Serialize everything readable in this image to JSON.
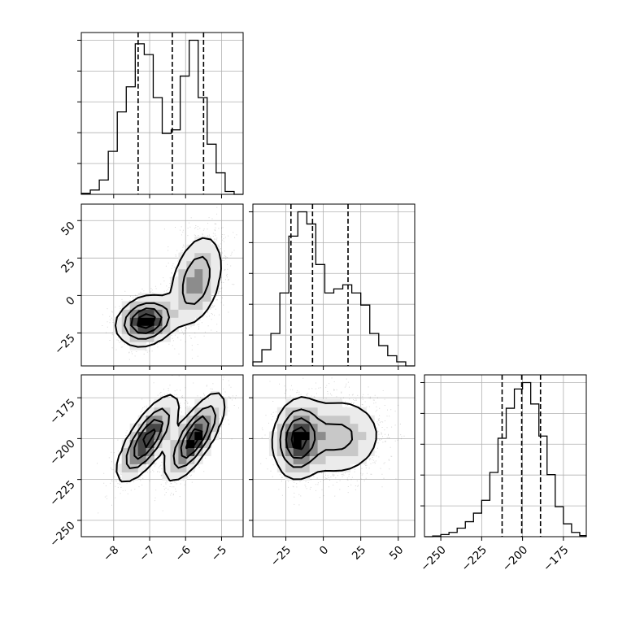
{
  "chart_data": {
    "type": "corner",
    "grid": true,
    "parameters": [
      {
        "ticks": [
          -8,
          -7,
          -6,
          -5
        ],
        "tick_labels": [
          "−8",
          "−7",
          "−6",
          "−5"
        ],
        "range": [
          -8.9,
          -4.4
        ]
      },
      {
        "ticks": [
          -25,
          0,
          25,
          50
        ],
        "tick_labels": [
          "−25",
          "0",
          "25",
          "50"
        ],
        "range": [
          -47,
          61
        ]
      },
      {
        "ticks": [
          -250,
          -225,
          -200,
          -175
        ],
        "tick_labels": [
          "−250",
          "−225",
          "−200",
          "−175"
        ],
        "range": [
          -260,
          -161
        ]
      }
    ],
    "histograms": [
      {
        "parameter": 0,
        "bin_edges": [
          -8.9,
          -8.65,
          -8.4,
          -8.15,
          -7.9,
          -7.65,
          -7.4,
          -7.15,
          -6.9,
          -6.65,
          -6.4,
          -6.15,
          -5.9,
          -5.65,
          -5.4,
          -5.15,
          -4.9,
          -4.65,
          -4.4
        ],
        "counts": [
          0.3,
          1.2,
          4,
          12,
          23,
          30,
          42,
          39,
          27,
          17,
          18,
          33,
          43,
          27,
          14,
          6,
          0.8,
          0
        ],
        "quantile_lines": [
          -7.32,
          -6.37,
          -5.5
        ]
      },
      {
        "parameter": 1,
        "bin_edges": [
          -47,
          -41,
          -35,
          -29,
          -23,
          -17,
          -11,
          -5,
          1,
          7,
          13,
          19,
          25,
          31,
          37,
          43,
          49,
          55,
          61
        ],
        "counts": [
          1,
          4,
          8,
          18,
          32,
          38,
          35,
          25,
          18,
          19,
          20,
          18,
          15,
          8,
          5,
          2.5,
          1,
          0
        ],
        "quantile_lines": [
          -21.6,
          -7.2,
          16.5
        ]
      },
      {
        "parameter": 2,
        "bin_edges": [
          -260,
          -255,
          -250,
          -245,
          -240,
          -235,
          -230,
          -225,
          -220,
          -215,
          -210,
          -205,
          -200,
          -195,
          -190,
          -185,
          -180,
          -175,
          -170,
          -165,
          -161
        ],
        "counts": [
          0,
          0.3,
          1,
          2,
          4,
          7,
          11,
          17,
          30,
          46,
          60,
          69,
          72,
          62,
          47,
          29,
          14,
          6,
          2,
          0.5
        ],
        "quantile_lines": [
          -212.5,
          -200.5,
          -189
        ]
      }
    ],
    "scatter_panels": [
      {
        "x_parameter": 0,
        "y_parameter": 1,
        "modes": [
          {
            "center": [
              -7.1,
              -17
            ],
            "spread": [
              0.4,
              8
            ],
            "correlation": 0.2,
            "weight": 0.5
          },
          {
            "center": [
              -5.7,
              10
            ],
            "spread": [
              0.38,
              16
            ],
            "correlation": 0.35,
            "weight": 0.5
          }
        ]
      },
      {
        "x_parameter": 0,
        "y_parameter": 2,
        "modes": [
          {
            "center": [
              -7.05,
              -200
            ],
            "spread": [
              0.42,
              13
            ],
            "correlation": 0.75,
            "weight": 0.5
          },
          {
            "center": [
              -5.75,
              -199
            ],
            "spread": [
              0.4,
              13
            ],
            "correlation": 0.75,
            "weight": 0.5
          }
        ]
      },
      {
        "x_parameter": 1,
        "y_parameter": 2,
        "modes": [
          {
            "center": [
              -17,
              -200
            ],
            "spread": [
              8,
              12
            ],
            "correlation": 0.1,
            "weight": 0.5
          },
          {
            "center": [
              10,
              -199
            ],
            "spread": [
              16,
              13
            ],
            "correlation": 0.05,
            "weight": 0.5
          }
        ]
      }
    ]
  }
}
